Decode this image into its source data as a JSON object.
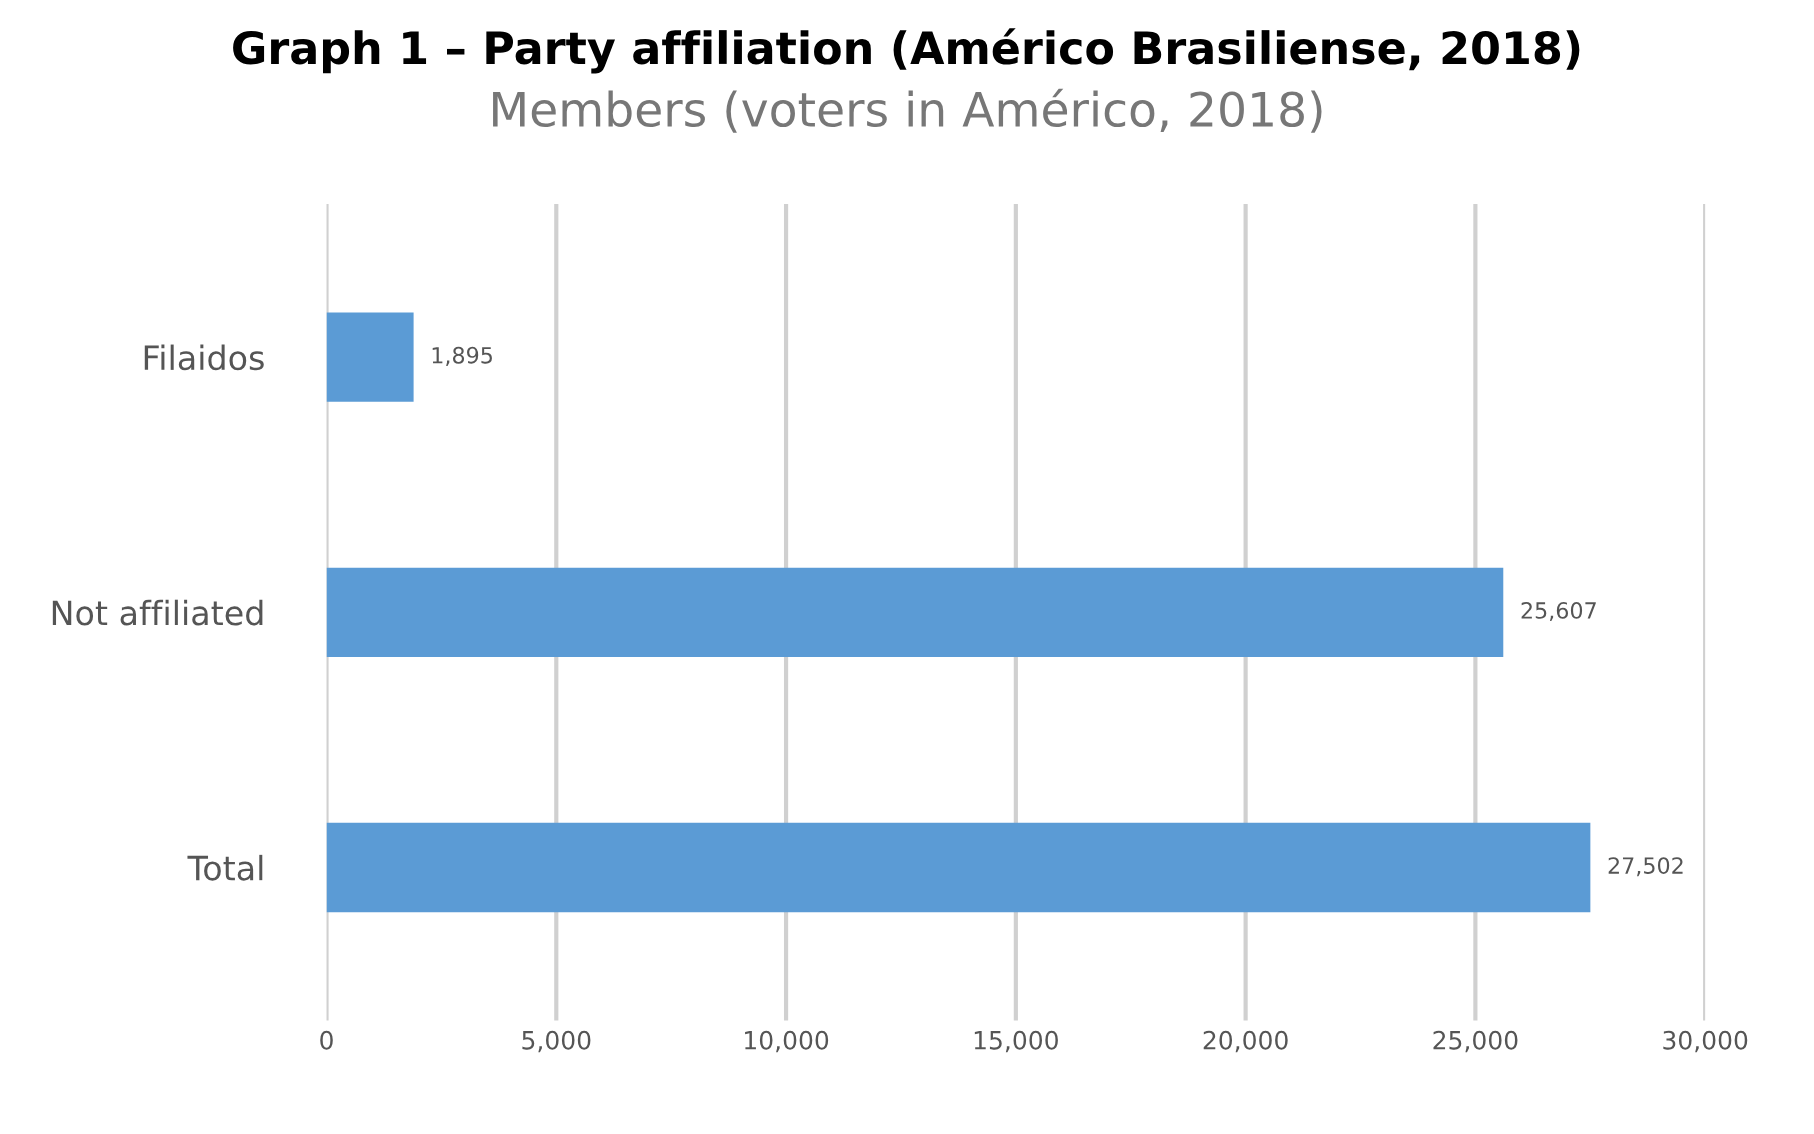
{
  "chart_data": {
    "type": "bar",
    "orientation": "horizontal",
    "title": "Graph 1 – Party affiliation (Américo Brasiliense, 2018)",
    "subtitle": "Members (voters in Américo, 2018)",
    "categories": [
      "Filaidos",
      "Not affiliated",
      "Total"
    ],
    "values": [
      1895,
      25607,
      27502
    ],
    "value_labels": [
      "1,895",
      "25,607",
      "27,502"
    ],
    "color": "#5b9bd5",
    "xlim": [
      0,
      30000
    ],
    "xticks": [
      0,
      {
        "value": 5000,
        "label": "5,000"
      },
      {
        "value": 10000,
        "label": "10,000"
      },
      {
        "value": 15000,
        "label": "15,000"
      },
      {
        "value": 20000,
        "label": "20,000"
      },
      {
        "value": 25000,
        "label": "25,000"
      },
      {
        "value": 30000,
        "label": "30,000"
      }
    ],
    "grid": "x"
  }
}
